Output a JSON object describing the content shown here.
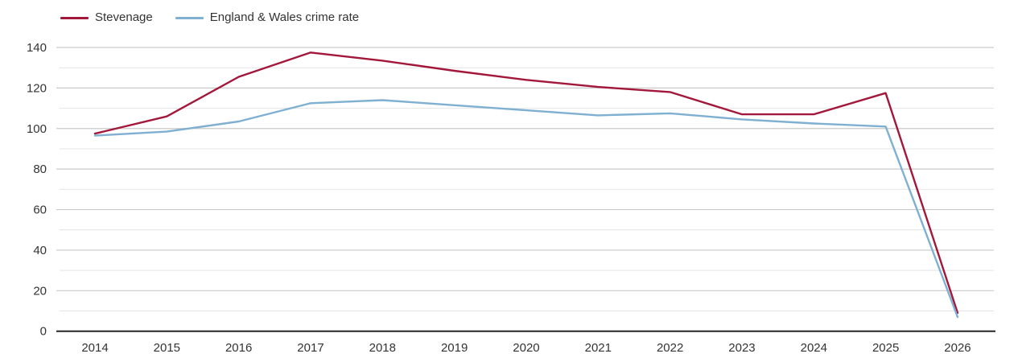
{
  "chart_data": {
    "type": "line",
    "categories": [
      "2014",
      "2015",
      "2016",
      "2017",
      "2018",
      "2019",
      "2020",
      "2021",
      "2022",
      "2023",
      "2024",
      "2025",
      "2026"
    ],
    "series": [
      {
        "name": "Stevenage",
        "color": "#a3173a",
        "values": [
          97.5,
          106,
          125.5,
          137.5,
          133.5,
          128.5,
          124,
          120.5,
          118,
          107,
          107,
          117.5,
          9
        ]
      },
      {
        "name": "England & Wales crime rate",
        "color": "#7fb0d2",
        "values": [
          96.5,
          98.5,
          103.5,
          112.5,
          114,
          111.5,
          109,
          106.5,
          107.5,
          104.5,
          102.5,
          101,
          7
        ]
      }
    ],
    "title": "",
    "xlabel": "",
    "ylabel": "",
    "ylim": [
      0,
      140
    ],
    "y_major_ticks": [
      0,
      20,
      40,
      60,
      80,
      100,
      120,
      140
    ],
    "y_minor_ticks": [
      10,
      30,
      50,
      70,
      90,
      110,
      130
    ],
    "grid": "horizontal",
    "legend_position": "top-left"
  },
  "colors": {
    "major_gridline": "#c9c9c9",
    "minor_gridline": "#e4e4e4",
    "axis_line": "#262626",
    "tick_label": "#333333"
  }
}
